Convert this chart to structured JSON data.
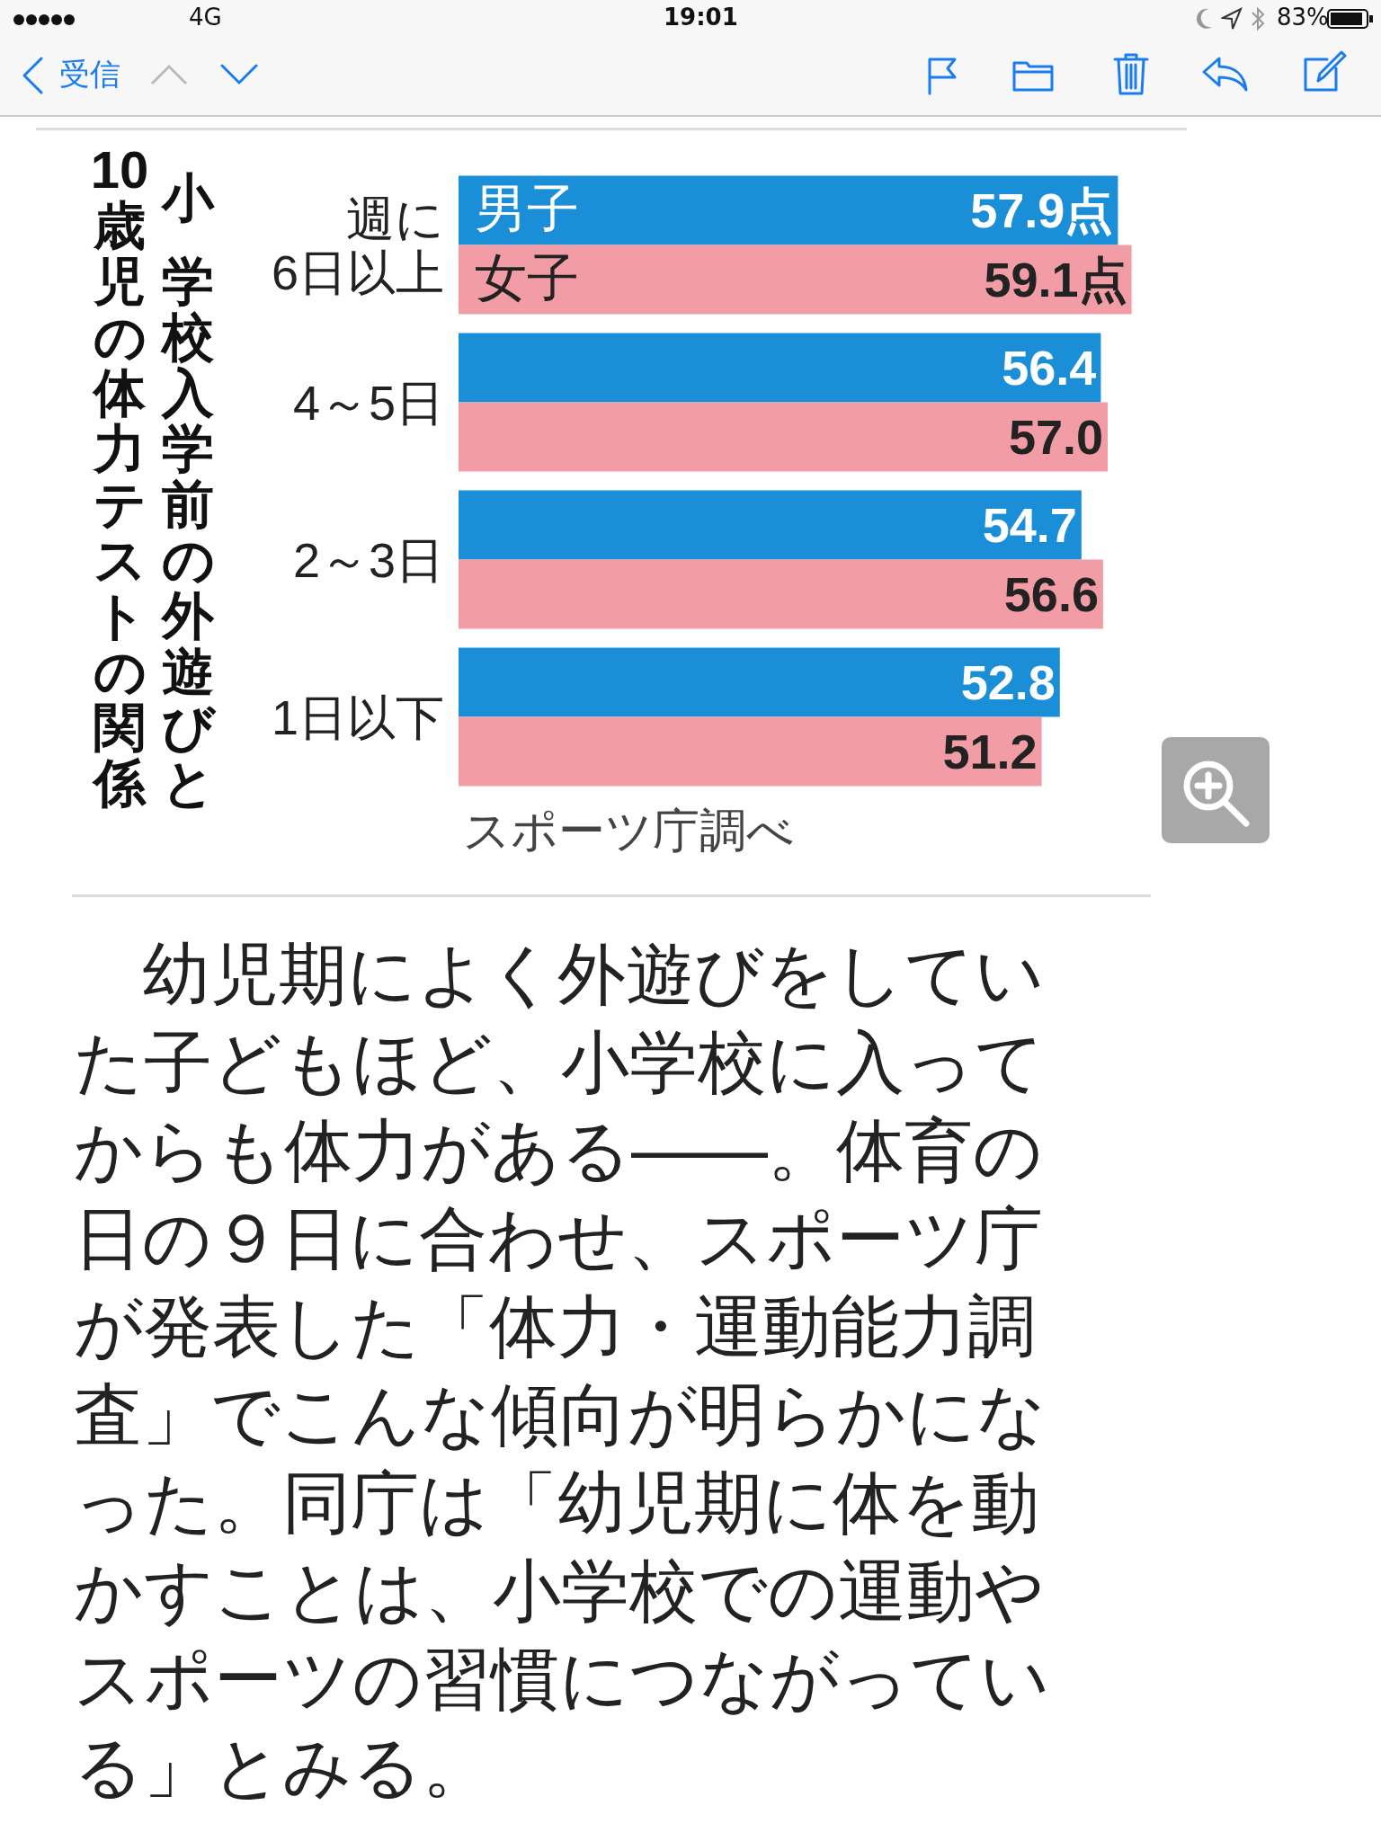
{
  "chart_data": {
    "type": "bar",
    "orientation": "horizontal",
    "title": "小学校入学前の外遊びと10歳児の体力テストの関係",
    "categories": [
      "週に\n6日以上",
      "4～5日",
      "2～3日",
      "1日以下"
    ],
    "series": [
      {
        "name": "男子",
        "color": "#1a8fd8",
        "values": [
          57.9,
          56.4,
          54.7,
          52.8
        ],
        "value_labels": [
          "57.9点",
          "56.4",
          "54.7",
          "52.8"
        ]
      },
      {
        "name": "女子",
        "color": "#f29ca5",
        "values": [
          59.1,
          57.0,
          56.6,
          51.2
        ],
        "value_labels": [
          "59.1点",
          "57.0",
          "56.6",
          "51.2"
        ]
      }
    ],
    "legend": false,
    "annotations": [
      "スポーツ庁調べ",
      "　幼児期によく外遊びをしていた子どもほど、小学校に入ってからも体力がある――。体育の日の９日に合わせ、スポーツ庁が発表した「体力・運動能力調査」でこんな傾向が明らかになった。同庁は「幼児期に体を動かすことは、小学校での運動やスポーツの習慣につながっている」とみる。",
      "19:01",
      "4G",
      "83%",
      "受信"
    ]
  }
}
